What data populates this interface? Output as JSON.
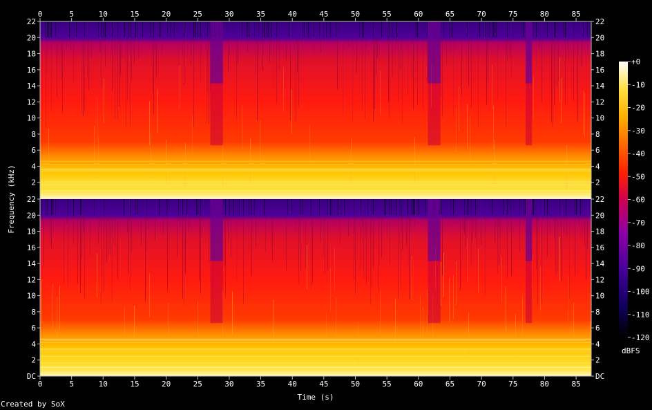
{
  "chart_data": {
    "type": "heatmap",
    "xlabel": "Time (s)",
    "ylabel": "Frequency (kHz)",
    "x_ticks": [
      0,
      5,
      10,
      15,
      20,
      25,
      30,
      35,
      40,
      45,
      50,
      55,
      60,
      65,
      70,
      75,
      80,
      85
    ],
    "x_range": [
      0,
      87.4
    ],
    "y_ticks": [
      "DC",
      "2",
      "4",
      "6",
      "8",
      "10",
      "12",
      "14",
      "16",
      "18",
      "20",
      "22"
    ],
    "y_range_khz": [
      0,
      22
    ],
    "channels": 2,
    "colorbar": {
      "label": "dBFS",
      "ticks": [
        "+0",
        "-10",
        "-20",
        "-30",
        "-40",
        "-50",
        "-60",
        "-70",
        "-80",
        "-90",
        "-100",
        "-110",
        "-120"
      ],
      "range": [
        -120,
        0
      ]
    },
    "colors": {
      "background": "#000000",
      "ramp": [
        "#000000",
        "#12005a",
        "#4a0090",
        "#8a00a0",
        "#c8004c",
        "#ff1e00",
        "#ff6a00",
        "#ffb000",
        "#ffe040",
        "#ffffd0"
      ]
    },
    "low_energy_segments_s": [
      [
        27,
        29
      ],
      [
        61.5,
        63.5
      ],
      [
        77,
        78
      ]
    ]
  },
  "footer": "Created by SoX"
}
